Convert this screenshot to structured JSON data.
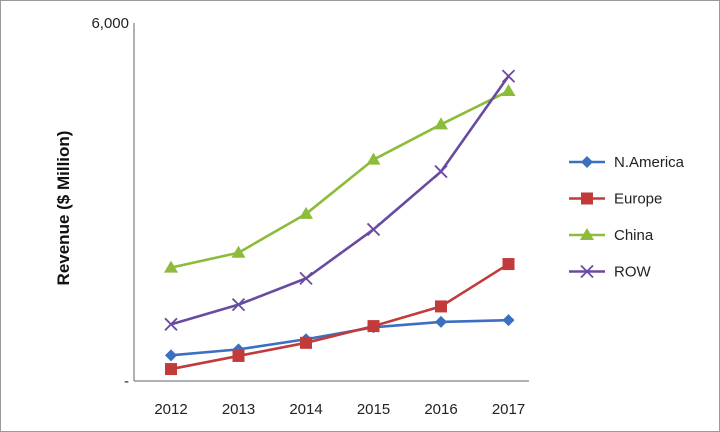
{
  "chart_data": {
    "type": "line",
    "title": "",
    "xlabel": "",
    "ylabel": "Revenue ($ Million)",
    "categories": [
      "2012",
      "2013",
      "2014",
      "2015",
      "2016",
      "2017"
    ],
    "ylim": [
      0,
      6000
    ],
    "y_tick_labels": [
      "-",
      "6,000"
    ],
    "grid": false,
    "legend_position": "right",
    "series": [
      {
        "name": "N.America",
        "values": [
          430,
          530,
          700,
          900,
          990,
          1020
        ],
        "color": "#3a6fc1",
        "marker": "diamond"
      },
      {
        "name": "Europe",
        "values": [
          200,
          420,
          640,
          920,
          1250,
          1960
        ],
        "color": "#c23a3a",
        "marker": "square"
      },
      {
        "name": "China",
        "values": [
          1900,
          2150,
          2800,
          3710,
          4300,
          4860
        ],
        "color": "#8dbb3a",
        "marker": "triangle"
      },
      {
        "name": "ROW",
        "values": [
          950,
          1280,
          1720,
          2540,
          3510,
          5110
        ],
        "color": "#6a4aa1",
        "marker": "x"
      }
    ]
  }
}
